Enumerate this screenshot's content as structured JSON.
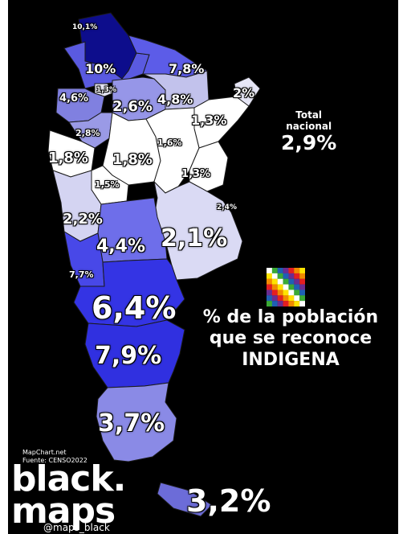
{
  "total": {
    "label_line1": "Total",
    "label_line2": "nacional",
    "value": "2,9%"
  },
  "title": {
    "line1": "% de la población",
    "line2": "que se reconoce",
    "line3": "INDIGENA"
  },
  "provinces": [
    {
      "name": "Jujuy",
      "value": "10,1%"
    },
    {
      "name": "Salta",
      "value": "10%"
    },
    {
      "name": "Formosa",
      "value": "7,8%"
    },
    {
      "name": "Misiones",
      "value": "2%"
    },
    {
      "name": "Catamarca",
      "value": "4,6%"
    },
    {
      "name": "Tucumán",
      "value": "1,3%"
    },
    {
      "name": "Santiago del Estero",
      "value": "2,6%"
    },
    {
      "name": "Chaco",
      "value": "4,8%"
    },
    {
      "name": "Corrientes",
      "value": "1,3%"
    },
    {
      "name": "La Rioja",
      "value": "2,8%"
    },
    {
      "name": "Santa Fe",
      "value": "1,6%"
    },
    {
      "name": "San Juan",
      "value": "1,8%"
    },
    {
      "name": "Córdoba",
      "value": "1,8%"
    },
    {
      "name": "Entre Ríos",
      "value": "1,3%"
    },
    {
      "name": "San Luis",
      "value": "1,5%"
    },
    {
      "name": "CABA",
      "value": "2,4%"
    },
    {
      "name": "Mendoza",
      "value": "2,2%"
    },
    {
      "name": "Buenos Aires",
      "value": "2,1%"
    },
    {
      "name": "La Pampa",
      "value": "4,4%"
    },
    {
      "name": "Neuquén",
      "value": "7,7%"
    },
    {
      "name": "Río Negro",
      "value": "6,4%"
    },
    {
      "name": "Chubut",
      "value": "7,9%"
    },
    {
      "name": "Santa Cruz",
      "value": "3,7%"
    },
    {
      "name": "Tierra del Fuego",
      "value": "3,2%"
    }
  ],
  "flag_colors": [
    "#e41e20",
    "#f18a00",
    "#ffe400",
    "#ffffff",
    "#3aa935",
    "#1e5fb4",
    "#6a2c91"
  ],
  "credits": {
    "line1": "MapChart.net",
    "line2": "Fuente: CENSO2022"
  },
  "brand": {
    "line1": "black.",
    "line2": "maps",
    "handle": "@maps_black"
  }
}
